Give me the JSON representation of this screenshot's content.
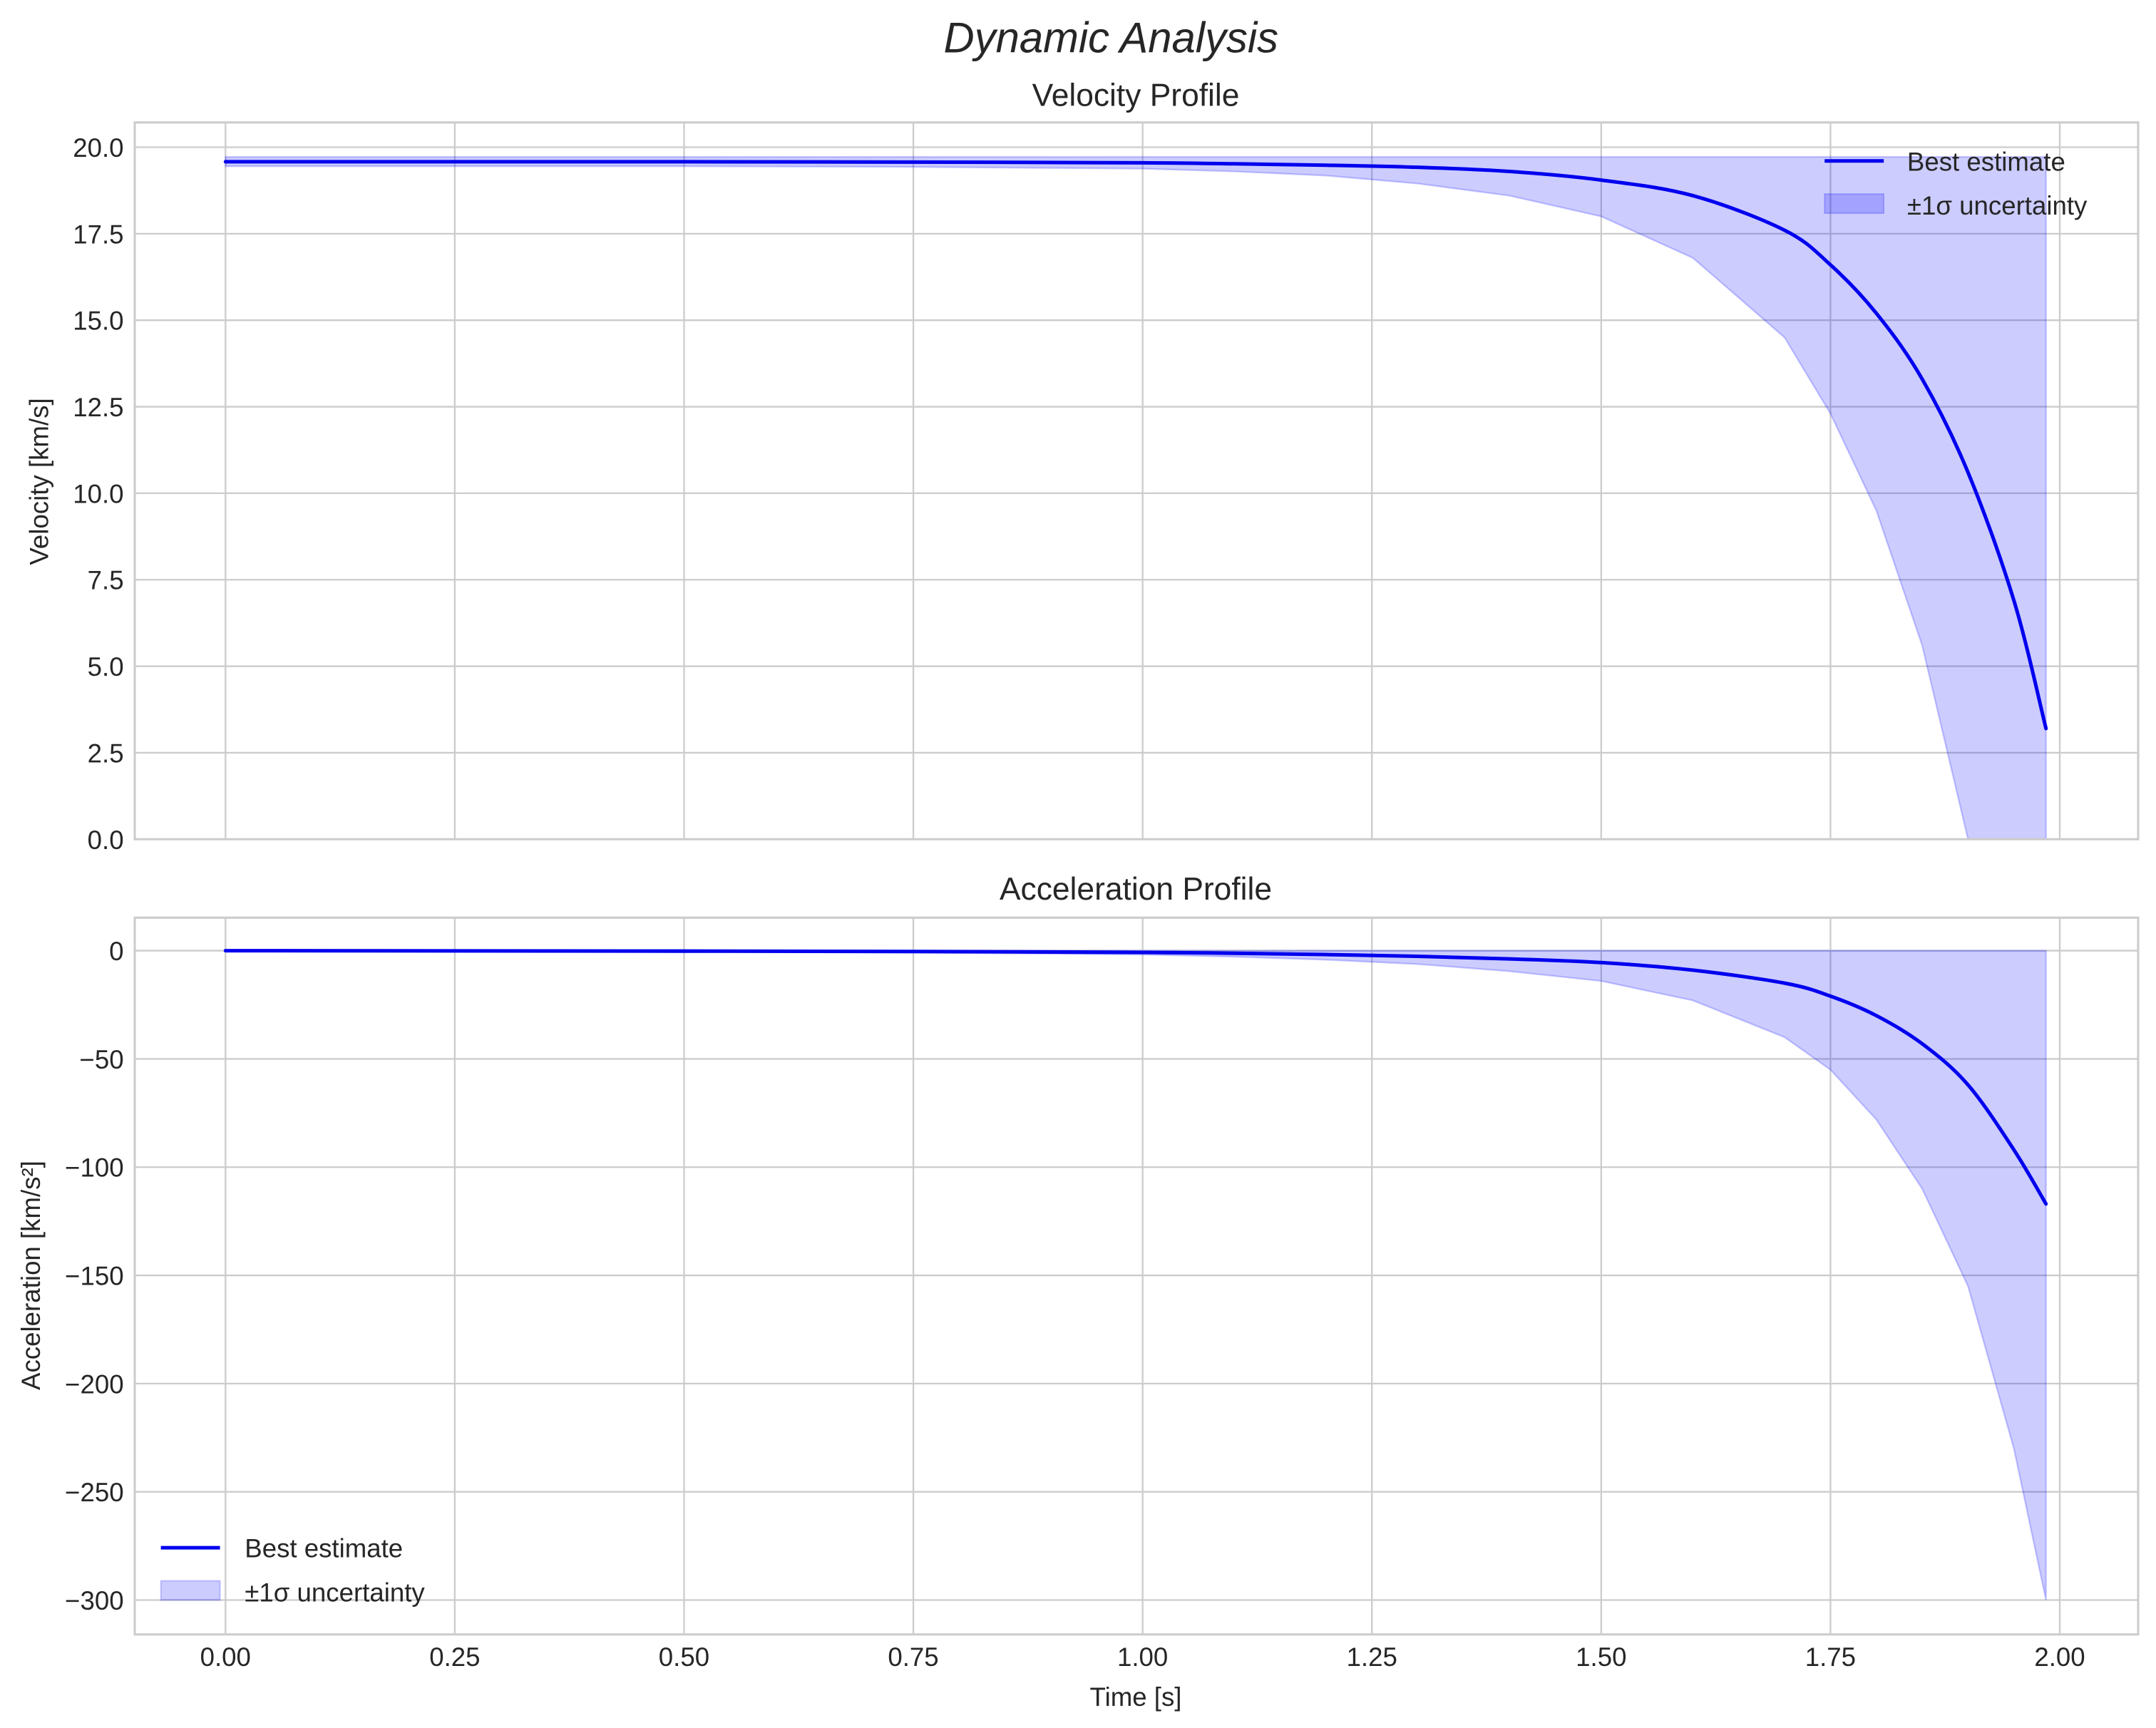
{
  "figure": {
    "title": "Dynamic Analysis"
  },
  "colors": {
    "line": "#0000ee",
    "band_fill": "#0000ff",
    "band_alpha": 0.2,
    "grid": "#cccccc",
    "text": "#262626"
  },
  "chart_data": [
    {
      "type": "line",
      "title": "Velocity Profile",
      "xlabel": "",
      "ylabel": "Velocity [km/s]",
      "xlim": [
        -0.1,
        2.08
      ],
      "ylim": [
        0.0,
        20.6
      ],
      "xticks": [
        "0.00",
        "0.25",
        "0.50",
        "0.75",
        "1.00",
        "1.25",
        "1.50",
        "1.75",
        "2.00"
      ],
      "xtick_values": [
        0,
        0.25,
        0.5,
        0.75,
        1.0,
        1.25,
        1.5,
        1.75,
        2.0
      ],
      "yticks": [
        "0.0",
        "2.5",
        "5.0",
        "7.5",
        "10.0",
        "12.5",
        "15.0",
        "17.5",
        "20.0"
      ],
      "ytick_values": [
        0,
        2.5,
        5,
        7.5,
        10,
        12.5,
        15,
        17.5,
        20
      ],
      "grid": true,
      "legend_position": "upper right",
      "legend": [
        "Best estimate",
        "±1σ uncertainty"
      ],
      "x": [
        0.0,
        0.25,
        0.5,
        0.75,
        1.0,
        1.1,
        1.2,
        1.3,
        1.4,
        1.5,
        1.6,
        1.7,
        1.75,
        1.8,
        1.85,
        1.9,
        1.95,
        1.985
      ],
      "series": [
        {
          "name": "Best estimate",
          "values": [
            19.58,
            19.58,
            19.58,
            19.57,
            19.55,
            19.52,
            19.48,
            19.42,
            19.3,
            19.05,
            18.6,
            17.6,
            16.6,
            15.2,
            13.3,
            10.6,
            6.9,
            3.2
          ]
        },
        {
          "name": "±1σ lower",
          "values": [
            19.45,
            19.45,
            19.45,
            19.43,
            19.38,
            19.3,
            19.18,
            18.95,
            18.6,
            18.0,
            16.8,
            14.5,
            12.3,
            9.5,
            5.6,
            0.0,
            0.0,
            0.0
          ]
        },
        {
          "name": "±1σ upper",
          "values": [
            19.72,
            19.72,
            19.72,
            19.72,
            19.72,
            19.72,
            19.72,
            19.72,
            19.72,
            19.72,
            19.72,
            19.72,
            19.72,
            19.72,
            19.72,
            19.72,
            19.72,
            19.72
          ]
        }
      ]
    },
    {
      "type": "line",
      "title": "Acceleration Profile",
      "xlabel": "Time [s]",
      "ylabel": "Acceleration [km/s²]",
      "xlim": [
        -0.1,
        2.08
      ],
      "ylim": [
        -315,
        15
      ],
      "xticks": [
        "0.00",
        "0.25",
        "0.50",
        "0.75",
        "1.00",
        "1.25",
        "1.50",
        "1.75",
        "2.00"
      ],
      "xtick_values": [
        0,
        0.25,
        0.5,
        0.75,
        1.0,
        1.25,
        1.5,
        1.75,
        2.0
      ],
      "yticks": [
        "0",
        "−50",
        "−100",
        "−150",
        "−200",
        "−250",
        "−300"
      ],
      "ytick_values": [
        0,
        -50,
        -100,
        -150,
        -200,
        -250,
        -300
      ],
      "grid": true,
      "legend_position": "lower left",
      "legend": [
        "Best estimate",
        "±1σ uncertainty"
      ],
      "x": [
        0.0,
        0.25,
        0.5,
        0.75,
        1.0,
        1.1,
        1.2,
        1.3,
        1.4,
        1.5,
        1.6,
        1.7,
        1.75,
        1.8,
        1.85,
        1.9,
        1.95,
        1.985
      ],
      "series": [
        {
          "name": "Best estimate",
          "values": [
            0,
            -0.1,
            -0.2,
            -0.4,
            -0.8,
            -1.2,
            -1.8,
            -2.6,
            -3.8,
            -5.5,
            -9,
            -15,
            -21,
            -30,
            -43,
            -62,
            -92,
            -117
          ]
        },
        {
          "name": "±1σ lower",
          "values": [
            0,
            -0.2,
            -0.4,
            -0.9,
            -1.8,
            -2.8,
            -4.2,
            -6.2,
            -9.5,
            -14,
            -23,
            -40,
            -55,
            -78,
            -110,
            -155,
            -230,
            -300
          ]
        },
        {
          "name": "±1σ upper",
          "values": [
            0,
            0,
            0,
            0,
            0,
            0,
            0,
            0,
            0,
            0,
            0,
            0,
            0,
            0,
            0,
            0,
            0,
            0
          ]
        }
      ]
    }
  ]
}
